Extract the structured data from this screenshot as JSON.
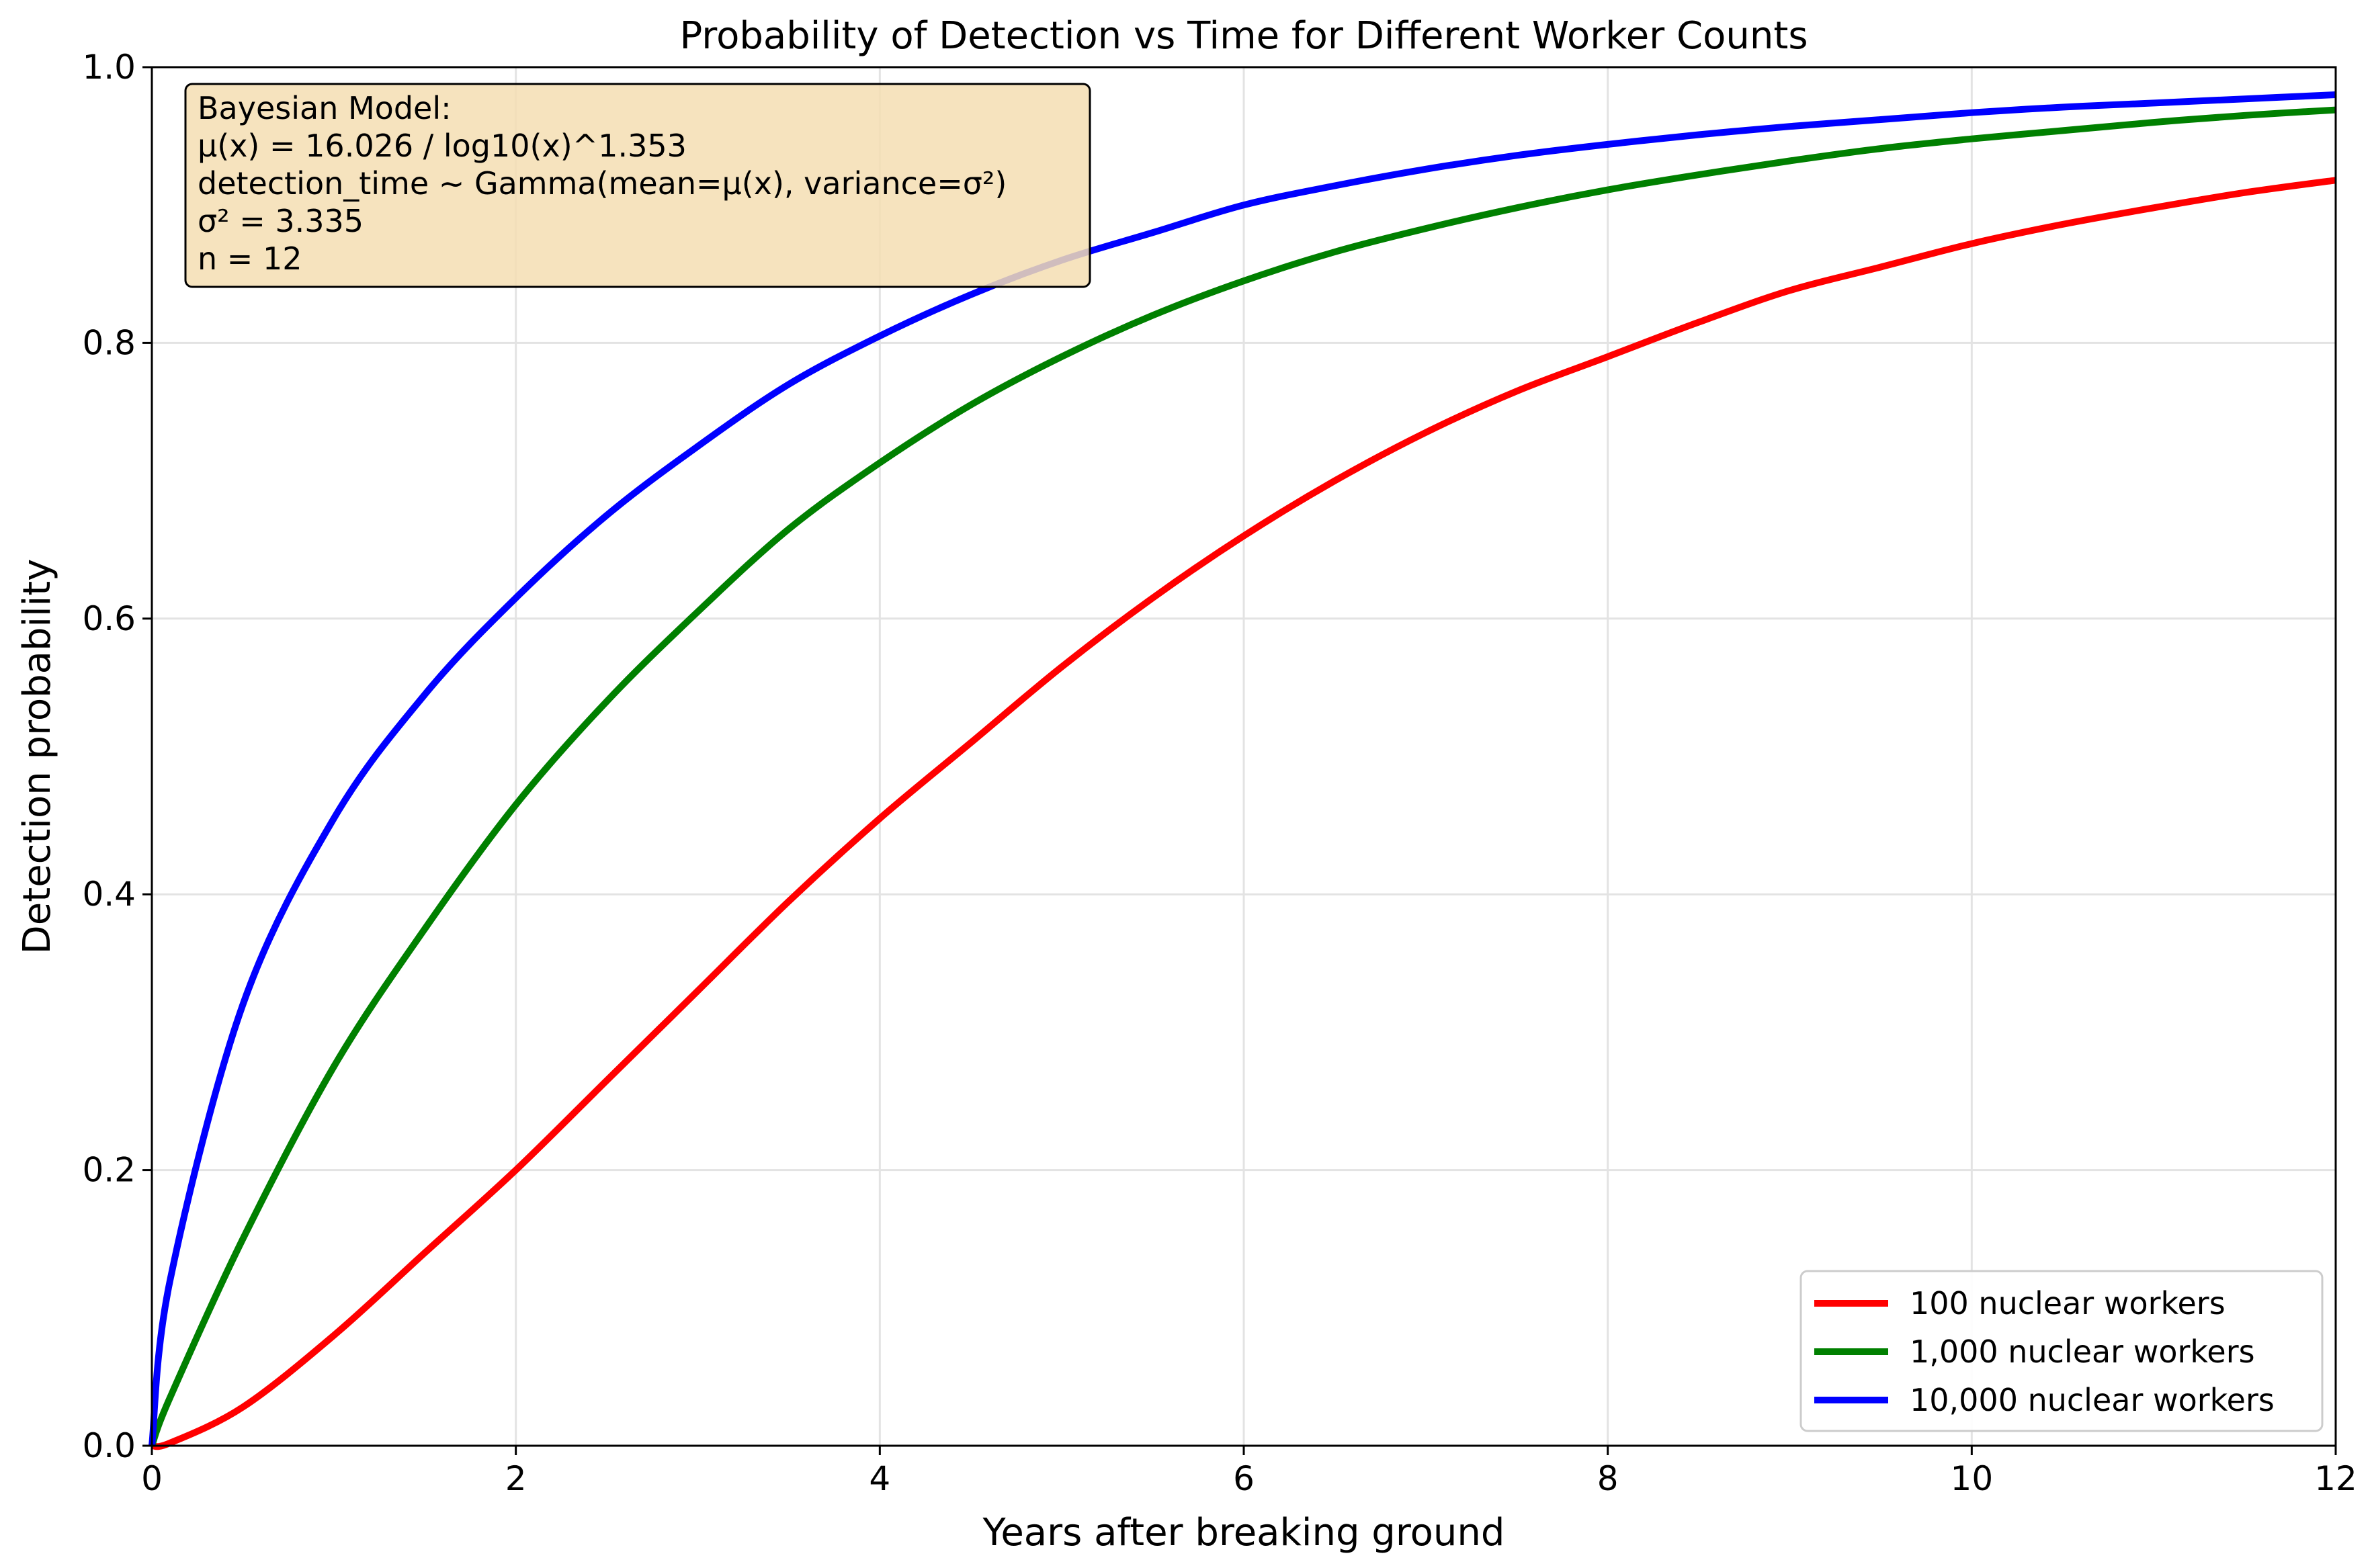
{
  "chart_data": {
    "type": "line",
    "title": "Probability of Detection vs Time for Different Worker Counts",
    "xlabel": "Years after breaking ground",
    "ylabel": "Detection probability",
    "xlim": [
      0,
      12
    ],
    "ylim": [
      0,
      1
    ],
    "xticks": [
      0,
      2,
      4,
      6,
      8,
      10,
      12
    ],
    "yticks": [
      0.0,
      0.2,
      0.4,
      0.6,
      0.8,
      1.0
    ],
    "xtick_labels": [
      "0",
      "2",
      "4",
      "6",
      "8",
      "10",
      "12"
    ],
    "ytick_labels": [
      "0.0",
      "0.2",
      "0.4",
      "0.6",
      "0.8",
      "1.0"
    ],
    "grid": true,
    "legend_position": "bottom-right",
    "x": [
      0,
      0.1,
      0.5,
      1,
      1.5,
      2,
      2.5,
      3,
      3.5,
      4,
      4.5,
      5,
      5.5,
      6,
      6.5,
      7,
      7.5,
      8,
      8.5,
      9,
      9.5,
      10,
      10.5,
      11,
      11.5,
      12
    ],
    "series": [
      {
        "name": "100 nuclear workers",
        "color": "#ff0000",
        "values": [
          0.0,
          0.002,
          0.028,
          0.08,
          0.14,
          0.2,
          0.265,
          0.33,
          0.395,
          0.455,
          0.51,
          0.565,
          0.615,
          0.66,
          0.7,
          0.735,
          0.765,
          0.79,
          0.815,
          0.838,
          0.855,
          0.872,
          0.886,
          0.898,
          0.909,
          0.918
        ]
      },
      {
        "name": "1,000 nuclear workers",
        "color": "#008000",
        "values": [
          0.0,
          0.035,
          0.15,
          0.275,
          0.375,
          0.465,
          0.54,
          0.605,
          0.665,
          0.713,
          0.755,
          0.79,
          0.82,
          0.845,
          0.866,
          0.883,
          0.898,
          0.911,
          0.922,
          0.932,
          0.941,
          0.948,
          0.954,
          0.96,
          0.965,
          0.969
        ]
      },
      {
        "name": "10,000 nuclear workers",
        "color": "#0000ff",
        "values": [
          0.0,
          0.12,
          0.32,
          0.455,
          0.545,
          0.615,
          0.675,
          0.725,
          0.77,
          0.805,
          0.835,
          0.86,
          0.88,
          0.9,
          0.914,
          0.926,
          0.936,
          0.944,
          0.951,
          0.957,
          0.962,
          0.967,
          0.971,
          0.974,
          0.977,
          0.98
        ]
      }
    ],
    "annotation": {
      "lines": [
        "Bayesian Model:",
        "μ(x) = 16.026 / log10(x)^1.353",
        "detection_time ~ Gamma(mean=μ(x), variance=σ²)",
        "σ² = 3.335",
        "n = 12"
      ],
      "background": "#f5deb3"
    }
  }
}
